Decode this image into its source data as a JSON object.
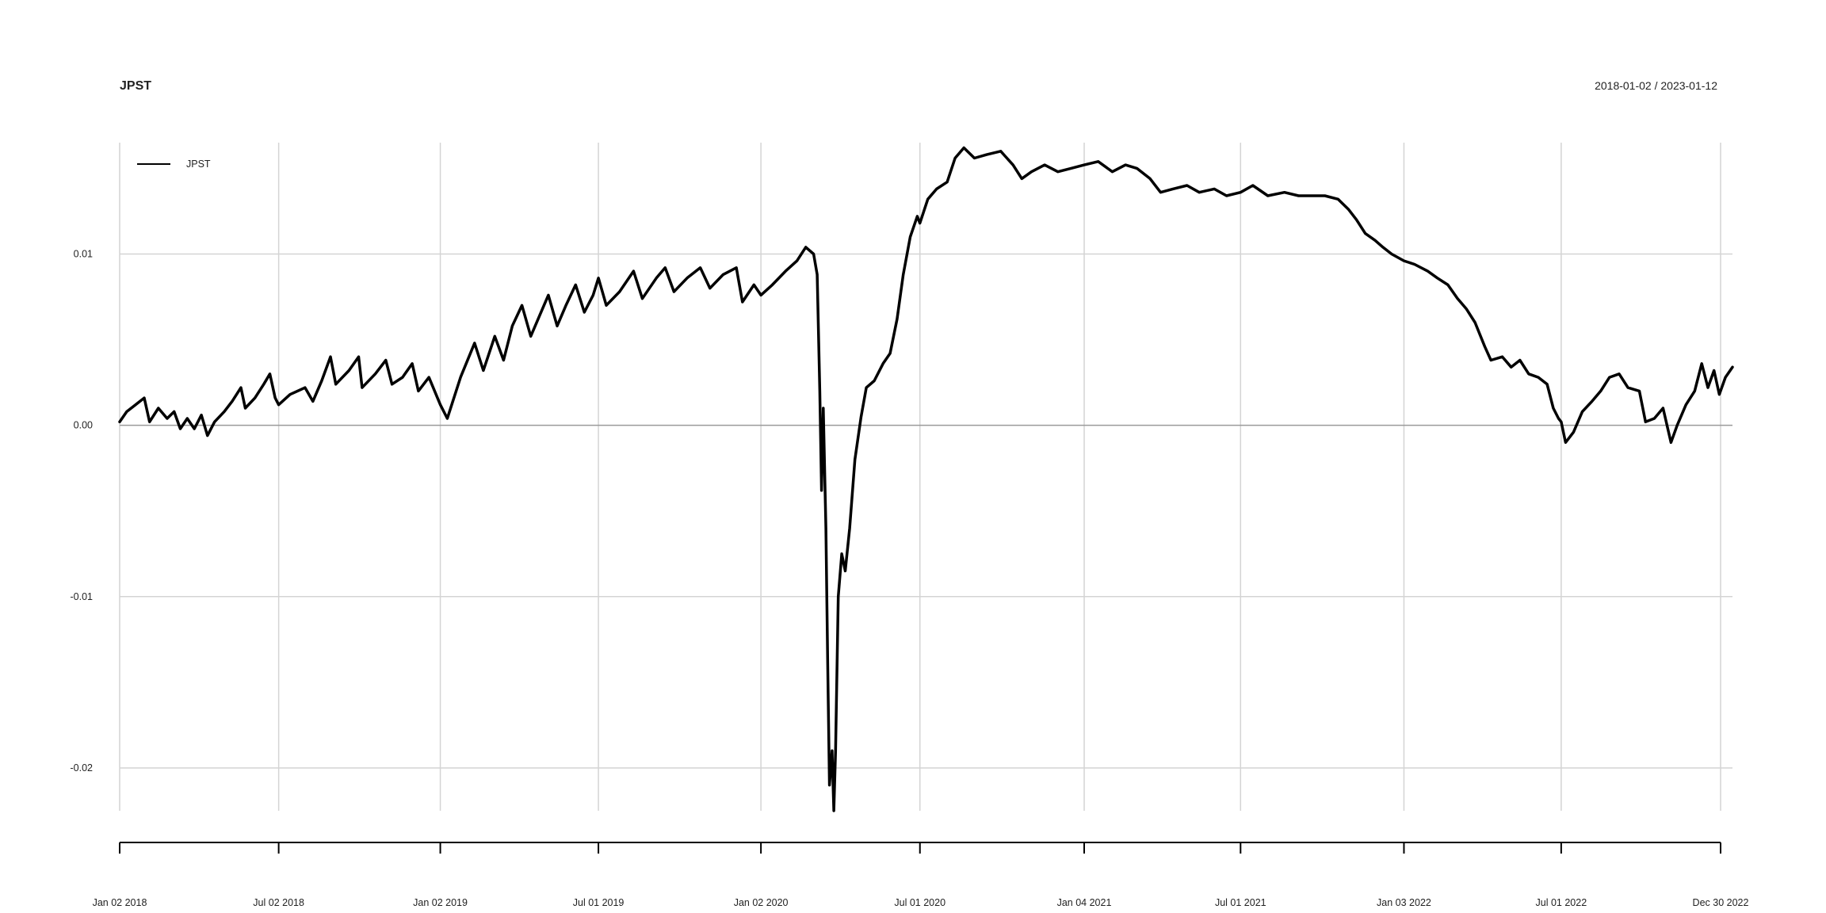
{
  "header": {
    "title": "JPST",
    "date_range": "2018-01-02 / 2023-01-12"
  },
  "chart_data": {
    "type": "line",
    "title": "JPST",
    "subtitle": "2018-01-02 / 2023-01-12",
    "xlabel": "",
    "ylabel": "",
    "x_start": "2018-01-02",
    "x_end": "2023-01-12",
    "ylim": [
      -0.0225,
      0.0165
    ],
    "y_ticks": [
      0.01,
      0.0,
      -0.01,
      -0.02
    ],
    "y_tick_labels": [
      "0.01",
      "0.00",
      "-0.01",
      "-0.02"
    ],
    "x_ticks": [
      "2018-01-02",
      "2018-07-02",
      "2019-01-02",
      "2019-07-01",
      "2020-01-02",
      "2020-07-01",
      "2021-01-04",
      "2021-07-01",
      "2022-01-03",
      "2022-07-01",
      "2022-12-30"
    ],
    "x_tick_labels": [
      "Jan 02 2018",
      "Jul 02 2018",
      "Jan 02 2019",
      "Jul 01 2019",
      "Jan 02 2020",
      "Jul 01 2020",
      "Jan 04 2021",
      "Jul 01 2021",
      "Jan 03 2022",
      "Jul 01 2022",
      "Dec 30 2022"
    ],
    "grid": true,
    "legend_position": "top-left",
    "series": [
      {
        "name": "JPST",
        "color": "#000000",
        "points": [
          [
            "2018-01-02",
            0.0002
          ],
          [
            "2018-01-10",
            0.0008
          ],
          [
            "2018-01-20",
            0.0012
          ],
          [
            "2018-01-30",
            0.0016
          ],
          [
            "2018-02-05",
            0.0002
          ],
          [
            "2018-02-15",
            0.001
          ],
          [
            "2018-02-25",
            0.0004
          ],
          [
            "2018-03-05",
            0.0008
          ],
          [
            "2018-03-12",
            -0.0002
          ],
          [
            "2018-03-20",
            0.0004
          ],
          [
            "2018-03-28",
            -0.0002
          ],
          [
            "2018-04-05",
            0.0006
          ],
          [
            "2018-04-12",
            -0.0006
          ],
          [
            "2018-04-20",
            0.0002
          ],
          [
            "2018-05-01",
            0.0008
          ],
          [
            "2018-05-10",
            0.0014
          ],
          [
            "2018-05-20",
            0.0022
          ],
          [
            "2018-05-25",
            0.001
          ],
          [
            "2018-06-05",
            0.0016
          ],
          [
            "2018-06-15",
            0.0024
          ],
          [
            "2018-06-22",
            0.003
          ],
          [
            "2018-06-28",
            0.0016
          ],
          [
            "2018-07-02",
            0.0012
          ],
          [
            "2018-07-15",
            0.0018
          ],
          [
            "2018-08-01",
            0.0022
          ],
          [
            "2018-08-10",
            0.0014
          ],
          [
            "2018-08-20",
            0.0026
          ],
          [
            "2018-08-30",
            0.004
          ],
          [
            "2018-09-05",
            0.0024
          ],
          [
            "2018-09-20",
            0.0032
          ],
          [
            "2018-10-01",
            0.004
          ],
          [
            "2018-10-05",
            0.0022
          ],
          [
            "2018-10-20",
            0.003
          ],
          [
            "2018-11-01",
            0.0038
          ],
          [
            "2018-11-08",
            0.0024
          ],
          [
            "2018-11-20",
            0.0028
          ],
          [
            "2018-12-01",
            0.0036
          ],
          [
            "2018-12-08",
            0.002
          ],
          [
            "2018-12-20",
            0.0028
          ],
          [
            "2019-01-02",
            0.0012
          ],
          [
            "2019-01-10",
            0.0004
          ],
          [
            "2019-01-25",
            0.0028
          ],
          [
            "2019-02-10",
            0.0048
          ],
          [
            "2019-02-20",
            0.0032
          ],
          [
            "2019-03-05",
            0.0052
          ],
          [
            "2019-03-15",
            0.0038
          ],
          [
            "2019-03-25",
            0.0058
          ],
          [
            "2019-04-05",
            0.007
          ],
          [
            "2019-04-15",
            0.0052
          ],
          [
            "2019-04-25",
            0.0064
          ],
          [
            "2019-05-05",
            0.0076
          ],
          [
            "2019-05-15",
            0.0058
          ],
          [
            "2019-05-25",
            0.007
          ],
          [
            "2019-06-05",
            0.0082
          ],
          [
            "2019-06-15",
            0.0066
          ],
          [
            "2019-06-25",
            0.0076
          ],
          [
            "2019-07-01",
            0.0086
          ],
          [
            "2019-07-10",
            0.007
          ],
          [
            "2019-07-25",
            0.0078
          ],
          [
            "2019-08-10",
            0.009
          ],
          [
            "2019-08-20",
            0.0074
          ],
          [
            "2019-09-05",
            0.0086
          ],
          [
            "2019-09-15",
            0.0092
          ],
          [
            "2019-09-25",
            0.0078
          ],
          [
            "2019-10-10",
            0.0086
          ],
          [
            "2019-10-25",
            0.0092
          ],
          [
            "2019-11-05",
            0.008
          ],
          [
            "2019-11-20",
            0.0088
          ],
          [
            "2019-12-05",
            0.0092
          ],
          [
            "2019-12-12",
            0.0072
          ],
          [
            "2019-12-25",
            0.0082
          ],
          [
            "2020-01-02",
            0.0076
          ],
          [
            "2020-01-15",
            0.0082
          ],
          [
            "2020-01-30",
            0.009
          ],
          [
            "2020-02-12",
            0.0096
          ],
          [
            "2020-02-22",
            0.0104
          ],
          [
            "2020-03-02",
            0.01
          ],
          [
            "2020-03-06",
            0.0088
          ],
          [
            "2020-03-09",
            0.002
          ],
          [
            "2020-03-11",
            -0.0038
          ],
          [
            "2020-03-13",
            0.001
          ],
          [
            "2020-03-16",
            -0.006
          ],
          [
            "2020-03-18",
            -0.014
          ],
          [
            "2020-03-20",
            -0.021
          ],
          [
            "2020-03-23",
            -0.019
          ],
          [
            "2020-03-25",
            -0.0225
          ],
          [
            "2020-03-27",
            -0.019
          ],
          [
            "2020-03-30",
            -0.01
          ],
          [
            "2020-04-03",
            -0.0075
          ],
          [
            "2020-04-07",
            -0.0085
          ],
          [
            "2020-04-12",
            -0.006
          ],
          [
            "2020-04-18",
            -0.002
          ],
          [
            "2020-04-25",
            0.0005
          ],
          [
            "2020-05-01",
            0.0022
          ],
          [
            "2020-05-10",
            0.0026
          ],
          [
            "2020-05-20",
            0.0036
          ],
          [
            "2020-05-28",
            0.0042
          ],
          [
            "2020-06-05",
            0.0062
          ],
          [
            "2020-06-12",
            0.0088
          ],
          [
            "2020-06-20",
            0.011
          ],
          [
            "2020-06-28",
            0.0122
          ],
          [
            "2020-07-01",
            0.0118
          ],
          [
            "2020-07-10",
            0.0132
          ],
          [
            "2020-07-20",
            0.0138
          ],
          [
            "2020-08-01",
            0.0142
          ],
          [
            "2020-08-10",
            0.0156
          ],
          [
            "2020-08-20",
            0.0162
          ],
          [
            "2020-09-01",
            0.0156
          ],
          [
            "2020-09-15",
            0.0158
          ],
          [
            "2020-10-01",
            0.016
          ],
          [
            "2020-10-15",
            0.0152
          ],
          [
            "2020-10-25",
            0.0144
          ],
          [
            "2020-11-05",
            0.0148
          ],
          [
            "2020-11-20",
            0.0152
          ],
          [
            "2020-12-05",
            0.0148
          ],
          [
            "2020-12-20",
            0.015
          ],
          [
            "2021-01-04",
            0.0152
          ],
          [
            "2021-01-20",
            0.0154
          ],
          [
            "2021-02-05",
            0.0148
          ],
          [
            "2021-02-20",
            0.0152
          ],
          [
            "2021-03-05",
            0.015
          ],
          [
            "2021-03-20",
            0.0144
          ],
          [
            "2021-04-01",
            0.0136
          ],
          [
            "2021-04-15",
            0.0138
          ],
          [
            "2021-05-01",
            0.014
          ],
          [
            "2021-05-15",
            0.0136
          ],
          [
            "2021-06-01",
            0.0138
          ],
          [
            "2021-06-15",
            0.0134
          ],
          [
            "2021-07-01",
            0.0136
          ],
          [
            "2021-07-15",
            0.014
          ],
          [
            "2021-08-01",
            0.0134
          ],
          [
            "2021-08-20",
            0.0136
          ],
          [
            "2021-09-05",
            0.0134
          ],
          [
            "2021-09-20",
            0.0134
          ],
          [
            "2021-10-05",
            0.0134
          ],
          [
            "2021-10-20",
            0.0132
          ],
          [
            "2021-11-01",
            0.0126
          ],
          [
            "2021-11-10",
            0.012
          ],
          [
            "2021-11-20",
            0.0112
          ],
          [
            "2021-12-01",
            0.0108
          ],
          [
            "2021-12-10",
            0.0104
          ],
          [
            "2021-12-20",
            0.01
          ],
          [
            "2022-01-03",
            0.0096
          ],
          [
            "2022-01-15",
            0.0094
          ],
          [
            "2022-01-30",
            0.009
          ],
          [
            "2022-02-10",
            0.0086
          ],
          [
            "2022-02-22",
            0.0082
          ],
          [
            "2022-03-05",
            0.0074
          ],
          [
            "2022-03-15",
            0.0068
          ],
          [
            "2022-03-25",
            0.006
          ],
          [
            "2022-04-05",
            0.0046
          ],
          [
            "2022-04-12",
            0.0038
          ],
          [
            "2022-04-25",
            0.004
          ],
          [
            "2022-05-05",
            0.0034
          ],
          [
            "2022-05-15",
            0.0038
          ],
          [
            "2022-05-25",
            0.003
          ],
          [
            "2022-06-05",
            0.0028
          ],
          [
            "2022-06-15",
            0.0024
          ],
          [
            "2022-06-22",
            0.001
          ],
          [
            "2022-06-28",
            0.0004
          ],
          [
            "2022-07-01",
            0.0002
          ],
          [
            "2022-07-06",
            -0.001
          ],
          [
            "2022-07-15",
            -0.0004
          ],
          [
            "2022-07-25",
            0.0008
          ],
          [
            "2022-08-05",
            0.0014
          ],
          [
            "2022-08-15",
            0.002
          ],
          [
            "2022-08-25",
            0.0028
          ],
          [
            "2022-09-05",
            0.003
          ],
          [
            "2022-09-15",
            0.0022
          ],
          [
            "2022-09-28",
            0.002
          ],
          [
            "2022-10-05",
            0.0002
          ],
          [
            "2022-10-15",
            0.0004
          ],
          [
            "2022-10-25",
            0.001
          ],
          [
            "2022-11-03",
            -0.001
          ],
          [
            "2022-11-10",
            0.0
          ],
          [
            "2022-11-20",
            0.0012
          ],
          [
            "2022-11-30",
            0.002
          ],
          [
            "2022-12-08",
            0.0036
          ],
          [
            "2022-12-15",
            0.0022
          ],
          [
            "2022-12-22",
            0.0032
          ],
          [
            "2022-12-28",
            0.0018
          ],
          [
            "2023-01-04",
            0.0028
          ],
          [
            "2023-01-12",
            0.0034
          ]
        ]
      }
    ]
  }
}
